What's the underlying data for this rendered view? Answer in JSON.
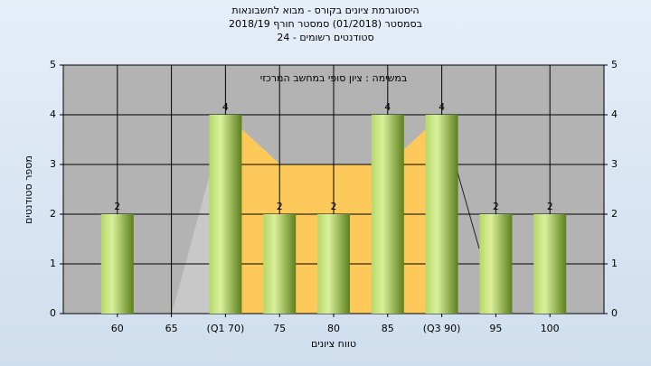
{
  "chart_data": {
    "type": "bar",
    "title": [
      "היסטוגרמת ציונים בקורס - מבוא לחשבונאות",
      "בסמסטר  (01/2018)  סמסטר חורף 2018/19",
      "סטודנטים רשומים - 24"
    ],
    "subtitle": "במשימה : ציון סופי במחשב המרכזי",
    "x_label": "טווח ציונים",
    "y_label": "מספר סטודנטים",
    "categories": [
      "60",
      "65",
      "(Q1 70)",
      "75",
      "80",
      "85",
      "(Q3 90)",
      "95",
      "100"
    ],
    "values": [
      2,
      0,
      4,
      2,
      2,
      4,
      4,
      2,
      2
    ],
    "value_labels": [
      "2",
      null,
      "4",
      "2",
      "2",
      "4",
      "4",
      "2",
      "2"
    ],
    "color": "#8db83a",
    "ylim": [
      0,
      5
    ],
    "yticks": [
      0,
      1,
      2,
      3,
      4,
      5
    ],
    "grid": true
  }
}
